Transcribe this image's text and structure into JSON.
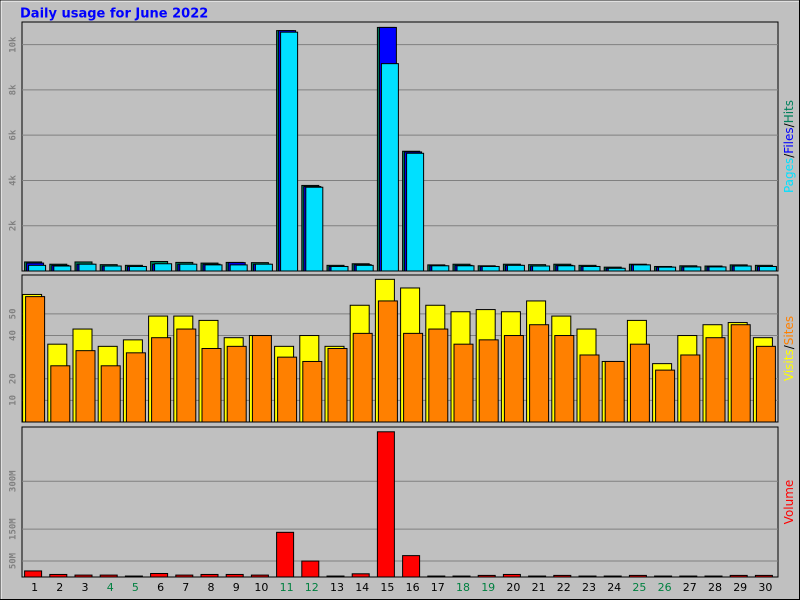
{
  "chart_data": [
    {
      "type": "bar",
      "title": "Daily usage for June 2022",
      "categories": [
        "1",
        "2",
        "3",
        "4",
        "5",
        "6",
        "7",
        "8",
        "9",
        "10",
        "11",
        "12",
        "13",
        "14",
        "15",
        "16",
        "17",
        "18",
        "19",
        "20",
        "21",
        "22",
        "23",
        "24",
        "25",
        "26",
        "27",
        "28",
        "29",
        "30"
      ],
      "label_colors": [
        "#000000",
        "#000000",
        "#000000",
        "#008040",
        "#008040",
        "#000000",
        "#000000",
        "#000000",
        "#000000",
        "#000000",
        "#008040",
        "#008040",
        "#000000",
        "#000000",
        "#000000",
        "#000000",
        "#000000",
        "#008040",
        "#008040",
        "#000000",
        "#000000",
        "#000000",
        "#000000",
        "#000000",
        "#008040",
        "#008040",
        "#000000",
        "#000000",
        "#000000",
        "#000000"
      ],
      "legend_separator": "/",
      "legend_reversed": true,
      "series": [
        {
          "name": "Hits",
          "color": "#00805c",
          "values": [
            400,
            300,
            400,
            280,
            250,
            420,
            380,
            350,
            380,
            370,
            10620,
            3780,
            250,
            320,
            10760,
            5290,
            270,
            300,
            230,
            300,
            280,
            300,
            250,
            170,
            300,
            200,
            230,
            220,
            270,
            250
          ]
        },
        {
          "name": "Files",
          "color": "#0000ff",
          "values": [
            350,
            250,
            300,
            220,
            200,
            300,
            300,
            300,
            370,
            300,
            10620,
            3730,
            200,
            280,
            10760,
            5260,
            230,
            250,
            200,
            250,
            220,
            250,
            200,
            120,
            270,
            170,
            180,
            180,
            220,
            200
          ]
        },
        {
          "name": "Pages",
          "color": "#00e0ff",
          "values": [
            250,
            220,
            300,
            220,
            200,
            320,
            300,
            270,
            270,
            300,
            10550,
            3700,
            200,
            250,
            9160,
            5200,
            230,
            230,
            200,
            250,
            220,
            230,
            200,
            120,
            270,
            170,
            180,
            180,
            220,
            200
          ]
        }
      ],
      "ylim": [
        0,
        11000
      ],
      "yticks": [
        {
          "value": 2000,
          "label": "2k"
        },
        {
          "value": 4000,
          "label": "4k"
        },
        {
          "value": 6000,
          "label": "6k"
        },
        {
          "value": 8000,
          "label": "8k"
        },
        {
          "value": 10000,
          "label": "10k"
        }
      ],
      "grid": true
    },
    {
      "type": "bar",
      "legend_separator": "/",
      "legend_reversed": false,
      "series": [
        {
          "name": "Visits",
          "color": "#ffff00",
          "values": [
            59,
            36,
            43,
            35,
            38,
            49,
            49,
            47,
            39,
            40,
            35,
            40,
            35,
            54,
            66,
            62,
            54,
            51,
            52,
            51,
            56,
            49,
            43,
            28,
            47,
            27,
            40,
            45,
            46,
            39
          ]
        },
        {
          "name": "Sites",
          "color": "#ff8000",
          "values": [
            58,
            26,
            33,
            26,
            32,
            39,
            43,
            34,
            35,
            40,
            30,
            28,
            34,
            41,
            56,
            41,
            43,
            36,
            38,
            40,
            45,
            40,
            31,
            28,
            36,
            24,
            31,
            39,
            45,
            35
          ]
        }
      ],
      "ylim": [
        0,
        68
      ],
      "yticks": [
        10,
        20,
        40,
        50
      ],
      "grid": true
    },
    {
      "type": "bar",
      "legend_reversed": false,
      "series": [
        {
          "name": "Volume",
          "color": "#ff0000",
          "values": [
            19,
            8,
            6,
            6,
            3,
            11,
            6,
            8,
            8,
            6,
            140,
            50,
            3,
            10,
            455,
            67,
            3,
            3,
            5,
            8,
            3,
            5,
            3,
            3,
            5,
            3,
            3,
            3,
            5,
            5
          ]
        }
      ],
      "ylim": [
        0,
        470
      ],
      "yticks": [
        {
          "value": 50,
          "label": "50M"
        },
        {
          "value": 150,
          "label": "150M"
        },
        {
          "value": 300,
          "label": "300M"
        }
      ],
      "grid": true
    }
  ]
}
